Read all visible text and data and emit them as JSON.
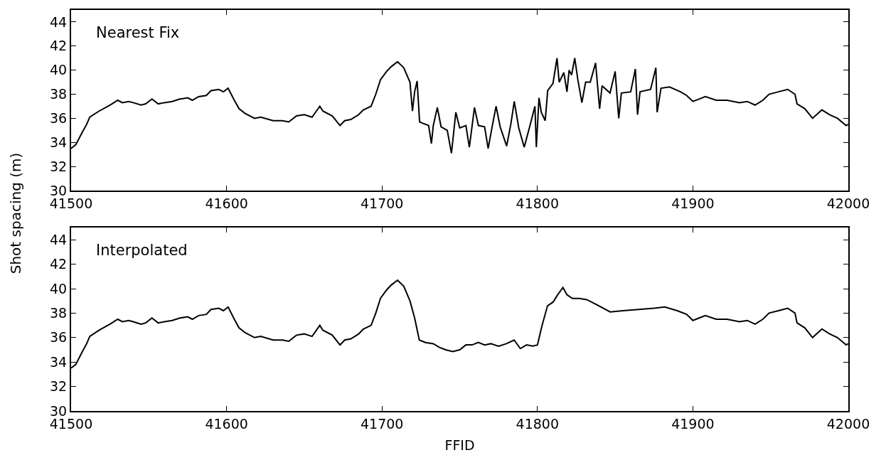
{
  "chart_data": [
    {
      "type": "line",
      "ylabel": "Shot spacing (m)",
      "annotations": [
        "Nearest Fix"
      ],
      "grid": false,
      "marker": "none",
      "line_style": "solid",
      "xlim": [
        41500,
        42000
      ],
      "xticks": [
        41500,
        41600,
        41700,
        41800,
        41900,
        42000
      ],
      "ylim": [
        30,
        45
      ],
      "yticks": [
        30,
        32,
        34,
        36,
        38,
        40,
        42,
        44
      ],
      "x": [
        41500,
        41503,
        41507,
        41510,
        41512,
        41518,
        41525,
        41530,
        41533,
        41537,
        41540,
        41545,
        41548,
        41552,
        41556,
        41560,
        41565,
        41570,
        41575,
        41578,
        41582,
        41587,
        41590,
        41595,
        41598,
        41601,
        41605,
        41608,
        41612,
        41618,
        41622,
        41630,
        41636,
        41640,
        41645,
        41650,
        41655,
        41660,
        41662,
        41668,
        41673,
        41676,
        41680,
        41685,
        41688,
        41693,
        41696,
        41699,
        41703,
        41706,
        41710,
        41714,
        41718,
        41719.6,
        41721,
        41722.6,
        41724.2,
        41726,
        41730,
        41731.8,
        41733,
        41735.6,
        41738,
        41742,
        41744.7,
        41747.5,
        41750,
        41754,
        41756.2,
        41759.5,
        41762,
        41766,
        41768.3,
        41771,
        41773.4,
        41776,
        41780.2,
        41783,
        41785.1,
        41788,
        41791.5,
        41795,
        41798.4,
        41799.3,
        41801,
        41802.5,
        41805,
        41806.6,
        41810,
        41812.6,
        41814,
        41817,
        41819,
        41820.4,
        41822,
        41824,
        41826,
        41828.6,
        41831,
        41834,
        41837.4,
        41840,
        41841.6,
        41846.7,
        41850,
        41852.3,
        41854,
        41860,
        41863,
        41864.4,
        41866,
        41872.8,
        41876.2,
        41877,
        41879.5,
        41885,
        41892,
        41896,
        41900,
        41904,
        41908,
        41915,
        41922,
        41930,
        41935,
        41940,
        41945,
        41949,
        41955,
        41961,
        41965.7,
        41967,
        41972,
        41977,
        41983,
        41988,
        41993,
        41998.6,
        42000
      ],
      "values": [
        33.5,
        33.8,
        34.8,
        35.5,
        36.1,
        36.6,
        37.1,
        37.5,
        37.3,
        37.4,
        37.3,
        37.1,
        37.2,
        37.6,
        37.2,
        37.3,
        37.4,
        37.6,
        37.7,
        37.5,
        37.8,
        37.9,
        38.3,
        38.4,
        38.2,
        38.5,
        37.5,
        36.8,
        36.4,
        36.0,
        36.1,
        35.8,
        35.8,
        35.7,
        36.2,
        36.3,
        36.1,
        37.0,
        36.6,
        36.2,
        35.4,
        35.8,
        35.9,
        36.3,
        36.7,
        37.0,
        38.0,
        39.2,
        39.9,
        40.3,
        40.7,
        40.2,
        39.0,
        36.6,
        38.2,
        39.1,
        35.7,
        35.6,
        35.4,
        33.9,
        35.4,
        36.9,
        35.3,
        35.0,
        33.1,
        36.5,
        35.2,
        35.4,
        33.6,
        36.9,
        35.4,
        35.3,
        33.5,
        35.4,
        37.0,
        35.3,
        33.7,
        35.6,
        37.4,
        35.2,
        33.6,
        35.3,
        37.0,
        33.6,
        37.7,
        36.5,
        35.8,
        38.3,
        38.9,
        41.0,
        39.0,
        39.8,
        38.2,
        40.0,
        39.6,
        41.0,
        39.2,
        37.3,
        39.0,
        39.0,
        40.6,
        36.8,
        38.7,
        38.1,
        39.9,
        36.0,
        38.1,
        38.2,
        40.1,
        36.3,
        38.2,
        38.4,
        40.2,
        36.5,
        38.5,
        38.6,
        38.2,
        37.9,
        37.4,
        37.6,
        37.8,
        37.5,
        37.5,
        37.3,
        37.4,
        37.1,
        37.5,
        38.0,
        38.2,
        38.4,
        38.0,
        37.2,
        36.8,
        36.0,
        36.7,
        36.3,
        36.0,
        35.4,
        35.5
      ],
      "color": "#000000"
    },
    {
      "type": "line",
      "xlabel": "FFID",
      "annotations": [
        "Interpolated"
      ],
      "grid": false,
      "marker": "none",
      "line_style": "solid",
      "xlim": [
        41500,
        42000
      ],
      "xticks": [
        41500,
        41600,
        41700,
        41800,
        41900,
        42000
      ],
      "ylim": [
        30,
        45
      ],
      "yticks": [
        30,
        32,
        34,
        36,
        38,
        40,
        42,
        44
      ],
      "x": [
        41500,
        41503,
        41507,
        41510,
        41512,
        41518,
        41525,
        41530,
        41533,
        41537,
        41540,
        41545,
        41548,
        41552,
        41556,
        41560,
        41565,
        41570,
        41575,
        41578,
        41582,
        41587,
        41590,
        41595,
        41598,
        41601,
        41605,
        41608,
        41612,
        41618,
        41622,
        41630,
        41636,
        41640,
        41645,
        41650,
        41655,
        41660,
        41662,
        41668,
        41673,
        41676,
        41680,
        41685,
        41688,
        41693,
        41696,
        41699,
        41703,
        41706,
        41710,
        41714,
        41718,
        41721,
        41724,
        41728,
        41733,
        41737,
        41741,
        41745.5,
        41750,
        41754,
        41758,
        41762,
        41766,
        41770,
        41775,
        41780,
        41785,
        41789,
        41793,
        41797,
        41800,
        41803,
        41806.5,
        41810,
        41813,
        41816.4,
        41819,
        41822.5,
        41827,
        41831.7,
        41838,
        41846.8,
        41855,
        41865,
        41875,
        41882,
        41890,
        41896,
        41900,
        41904,
        41908,
        41915,
        41922,
        41930,
        41935,
        41940,
        41945,
        41949,
        41955,
        41961,
        41965.7,
        41967,
        41972,
        41977,
        41983,
        41988,
        41993,
        41998.6,
        42000
      ],
      "values": [
        33.5,
        33.8,
        34.8,
        35.5,
        36.1,
        36.6,
        37.1,
        37.5,
        37.3,
        37.4,
        37.3,
        37.1,
        37.2,
        37.6,
        37.2,
        37.3,
        37.4,
        37.6,
        37.7,
        37.5,
        37.8,
        37.9,
        38.3,
        38.4,
        38.2,
        38.5,
        37.5,
        36.8,
        36.4,
        36.0,
        36.1,
        35.8,
        35.8,
        35.7,
        36.2,
        36.3,
        36.1,
        37.0,
        36.6,
        36.2,
        35.4,
        35.8,
        35.9,
        36.3,
        36.7,
        37.0,
        38.0,
        39.2,
        39.9,
        40.3,
        40.7,
        40.2,
        39.0,
        37.6,
        35.8,
        35.6,
        35.5,
        35.2,
        35.0,
        34.85,
        35.0,
        35.4,
        35.4,
        35.6,
        35.4,
        35.5,
        35.3,
        35.5,
        35.8,
        35.1,
        35.4,
        35.3,
        35.4,
        37.0,
        38.6,
        38.9,
        39.5,
        40.1,
        39.5,
        39.2,
        39.2,
        39.1,
        38.7,
        38.1,
        38.2,
        38.3,
        38.4,
        38.5,
        38.2,
        37.9,
        37.4,
        37.6,
        37.8,
        37.5,
        37.5,
        37.3,
        37.4,
        37.1,
        37.5,
        38.0,
        38.2,
        38.4,
        38.0,
        37.2,
        36.8,
        36.0,
        36.7,
        36.3,
        36.0,
        35.4,
        35.5
      ],
      "color": "#000000"
    }
  ]
}
